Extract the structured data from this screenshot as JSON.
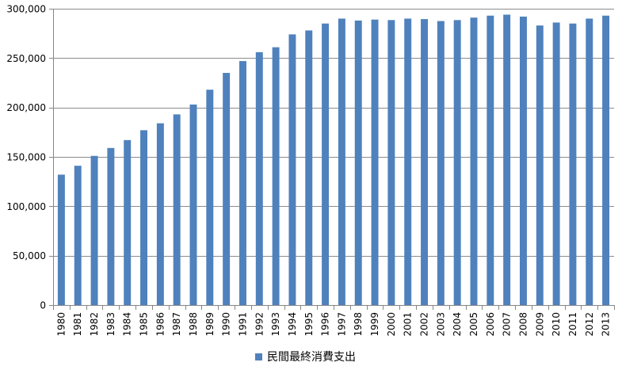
{
  "chart_data": {
    "type": "bar",
    "categories": [
      "1980",
      "1981",
      "1982",
      "1983",
      "1984",
      "1985",
      "1986",
      "1987",
      "1988",
      "1989",
      "1990",
      "1991",
      "1992",
      "1993",
      "1994",
      "1995",
      "1996",
      "1997",
      "1998",
      "1999",
      "2000",
      "2001",
      "2002",
      "2003",
      "2004",
      "2005",
      "2006",
      "2007",
      "2008",
      "2009",
      "2010",
      "2011",
      "2012",
      "2013"
    ],
    "series": [
      {
        "name": "民間最終消費支出",
        "color": "#4f81bd",
        "values": [
          132000,
          141000,
          151000,
          159000,
          167000,
          177000,
          184000,
          193000,
          203000,
          218000,
          235000,
          247000,
          256000,
          261000,
          274000,
          278000,
          285000,
          290000,
          288000,
          289000,
          288500,
          290000,
          289500,
          287500,
          288500,
          291000,
          293000,
          294000,
          292000,
          283000,
          286000,
          285000,
          290000,
          293000
        ]
      }
    ],
    "ylim": [
      0,
      300000
    ],
    "y_ticks": [
      "0",
      "50,000",
      "100,000",
      "150,000",
      "200,000",
      "250,000",
      "300,000"
    ],
    "y_tick_values": [
      0,
      50000,
      100000,
      150000,
      200000,
      250000,
      300000
    ],
    "grid": true,
    "legend_position": "bottom",
    "title": "",
    "xlabel": "",
    "ylabel": ""
  }
}
